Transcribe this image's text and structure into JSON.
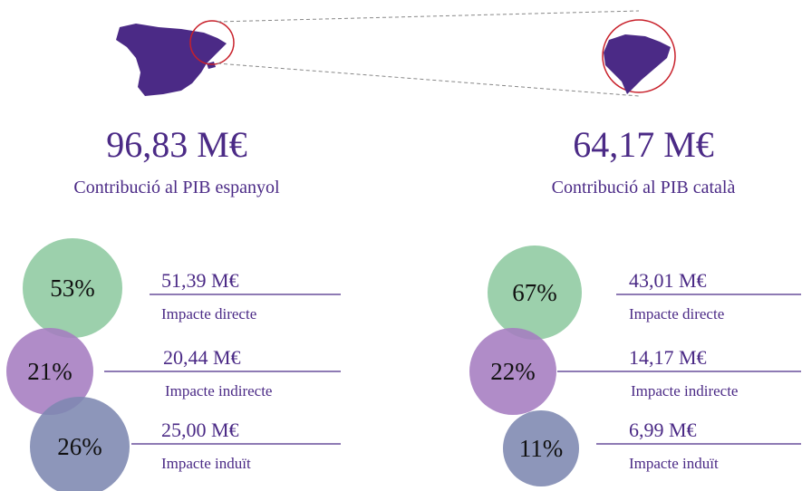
{
  "panels": [
    {
      "total": "96,83 M€",
      "label": "Contribució al PIB espanyol",
      "items": [
        {
          "percent": "53%",
          "value": "51,39 M€",
          "label": "Impacte directe"
        },
        {
          "percent": "21%",
          "value": "20,44 M€",
          "label": "Impacte indirecte"
        },
        {
          "percent": "26%",
          "value": "25,00 M€",
          "label": "Impacte induït"
        }
      ]
    },
    {
      "total": "64,17 M€",
      "label": "Contribució al PIB català",
      "items": [
        {
          "percent": "67%",
          "value": "43,01 M€",
          "label": "Impacte directe"
        },
        {
          "percent": "22%",
          "value": "14,17 M€",
          "label": "Impacte indirecte"
        },
        {
          "percent": "11%",
          "value": "6,99 M€",
          "label": "Impacte induït"
        }
      ]
    }
  ]
}
